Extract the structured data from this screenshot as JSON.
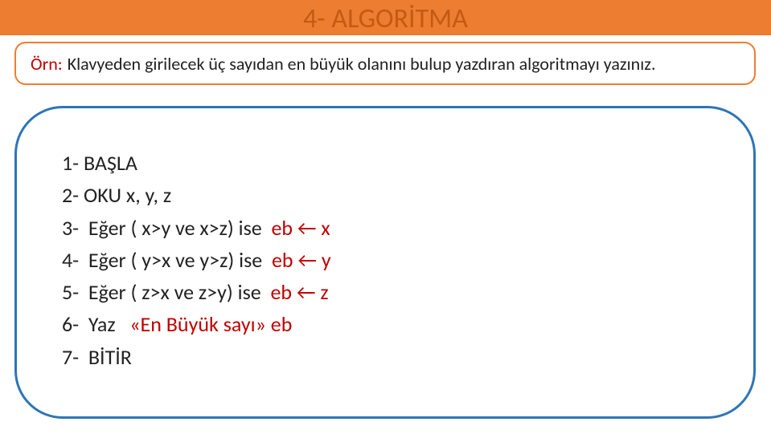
{
  "title": "4- ALGORİTMA",
  "question": {
    "prefix": "Örn:",
    "text": "Klavyeden girilecek  üç sayıdan en büyük olanını bulup yazdıran algoritmayı yazınız."
  },
  "steps": {
    "s1": "1- BAŞLA",
    "s2": "2- OKU x, y, z",
    "s3a": "3-  Eğer ( x>y ve x>z) ise  ",
    "s3b": "eb ← x",
    "s4a": "4-  Eğer ( y>x ve y>z) ise  ",
    "s4b": "eb ← y",
    "s5a": "5-  Eğer ( z>x ve z>y) ise  ",
    "s5b": "eb ← z",
    "s6a": "6-  Yaz   ",
    "s6b": "«En Büyük sayı» eb",
    "s7": "7-  BİTİR"
  },
  "colors": {
    "orange": "#ed7d31",
    "title_color": "#c55a11",
    "blue": "#2e75b6",
    "red": "#c00000",
    "text": "#222222",
    "bg": "#ffffff"
  },
  "fonts": {
    "title_size": 34,
    "question_size": 22,
    "step_size": 26
  }
}
